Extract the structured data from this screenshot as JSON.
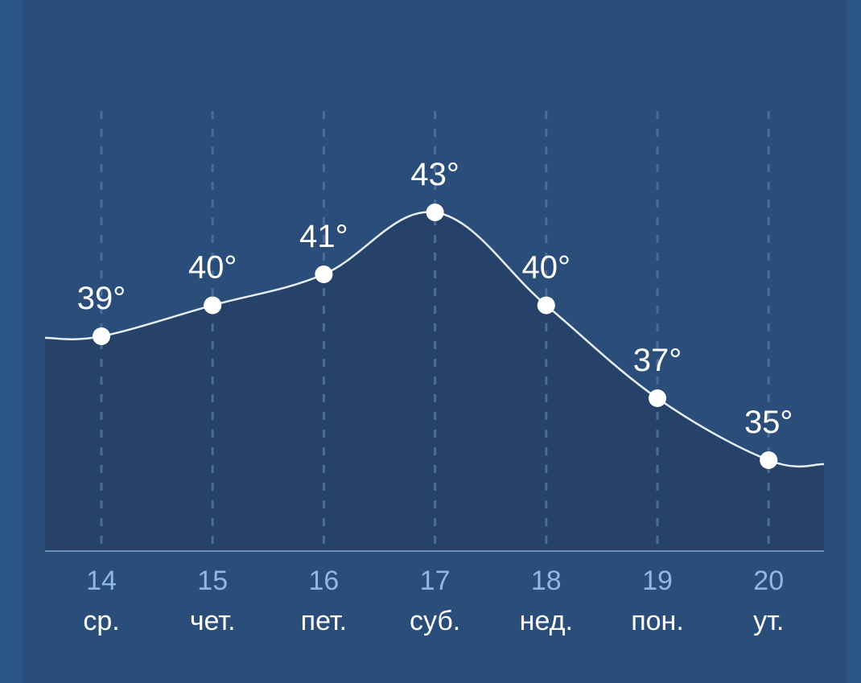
{
  "colors": {
    "background_outer": "#2b5487",
    "panel": "#2a4d7a",
    "area_fill": "#264268",
    "line": "#e6eef8",
    "point": "#ffffff",
    "date_text": "#8fb8e8",
    "day_text": "#ffffff"
  },
  "chart_data": {
    "type": "area",
    "categories": [
      "14",
      "15",
      "16",
      "17",
      "18",
      "19",
      "20"
    ],
    "day_labels": [
      "ср.",
      "чет.",
      "пет.",
      "суб.",
      "нед.",
      "пон.",
      "ут."
    ],
    "values": [
      39,
      40,
      41,
      43,
      40,
      37,
      35
    ],
    "value_labels": [
      "39°",
      "40°",
      "41°",
      "43°",
      "40°",
      "37°",
      "35°"
    ],
    "title": "",
    "xlabel": "",
    "ylabel": "",
    "grid": "vertical-dashed",
    "legend": "none"
  }
}
